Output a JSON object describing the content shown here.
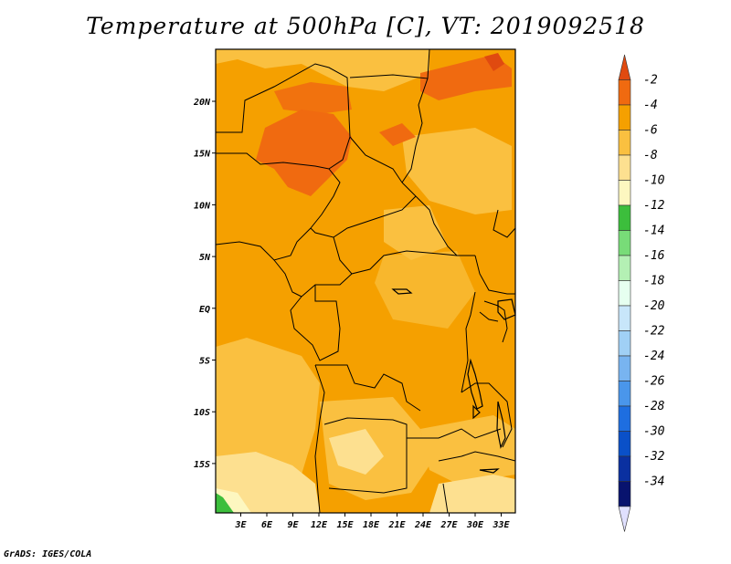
{
  "title": "Temperature at 500hPa [C], VT: 2019092518",
  "credit": "GrADS: IGES/COLA",
  "map": {
    "lon_range": [
      0,
      34
    ],
    "lat_range": [
      -20,
      24
    ],
    "x_tick_labels": [
      "3E",
      "6E",
      "9E",
      "12E",
      "15E",
      "18E",
      "21E",
      "24E",
      "27E",
      "30E",
      "33E"
    ],
    "y_tick_labels": [
      "20N",
      "15N",
      "10N",
      "5N",
      "EQ",
      "5S",
      "10S",
      "15S"
    ]
  },
  "colorbar": {
    "levels": [
      "-2",
      "-4",
      "-6",
      "-8",
      "-10",
      "-12",
      "-14",
      "-16",
      "-18",
      "-20",
      "-22",
      "-24",
      "-26",
      "-28",
      "-30",
      "-32",
      "-34"
    ],
    "colors": [
      "#e04a10",
      "#f06a10",
      "#f5a000",
      "#fac040",
      "#fde090",
      "#fdf7c0",
      "#3cbe3c",
      "#78dc78",
      "#b4f0b4",
      "#e6fff0",
      "#c8e6fa",
      "#a0d0f5",
      "#78b4f0",
      "#4a96eb",
      "#1e6ee0",
      "#0a50c8",
      "#0a30a0",
      "#08136e",
      "#e0e0ff"
    ]
  }
}
